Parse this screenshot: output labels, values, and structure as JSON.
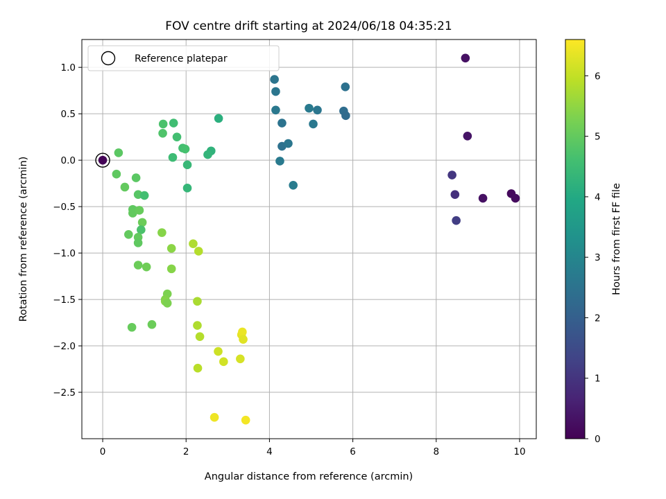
{
  "chart_data": {
    "type": "scatter",
    "title": "FOV centre drift starting at 2024/06/18 04:35:21",
    "xlabel": "Angular distance from reference (arcmin)",
    "ylabel": "Rotation from reference (arcmin)",
    "xlim": [
      -0.5,
      10.4
    ],
    "ylim": [
      -3.0,
      1.3
    ],
    "xticks": [
      0,
      2,
      4,
      6,
      8,
      10
    ],
    "xtick_labels": [
      "0",
      "2",
      "4",
      "6",
      "8",
      "10"
    ],
    "yticks": [
      -2.5,
      -2.0,
      -1.5,
      -1.0,
      -0.5,
      0.0,
      0.5,
      1.0
    ],
    "ytick_labels": [
      "−2.5",
      "−2.0",
      "−1.5",
      "−1.0",
      "−0.5",
      "0.0",
      "0.5",
      "1.0"
    ],
    "grid": true,
    "legend": {
      "label": "Reference platepar",
      "position": "upper-left"
    },
    "reference_point": {
      "x": 0,
      "y": 0
    },
    "colorbar": {
      "label": "Hours from first FF file",
      "range": [
        0,
        6.6
      ],
      "ticks": [
        0,
        1,
        2,
        3,
        4,
        5,
        6
      ],
      "tick_labels": [
        "0",
        "1",
        "2",
        "3",
        "4",
        "5",
        "6"
      ],
      "colormap": "viridis"
    },
    "points": [
      {
        "x": 0.0,
        "y": 0.0,
        "c": 0.05
      },
      {
        "x": 8.7,
        "y": 1.1,
        "c": 0.3
      },
      {
        "x": 8.75,
        "y": 0.26,
        "c": 0.35
      },
      {
        "x": 8.38,
        "y": -0.16,
        "c": 1.05
      },
      {
        "x": 8.45,
        "y": -0.37,
        "c": 0.9
      },
      {
        "x": 8.48,
        "y": -0.65,
        "c": 1.2
      },
      {
        "x": 9.12,
        "y": -0.41,
        "c": 0.3
      },
      {
        "x": 9.8,
        "y": -0.36,
        "c": 0.15
      },
      {
        "x": 9.9,
        "y": -0.41,
        "c": 0.2
      },
      {
        "x": 4.12,
        "y": 0.87,
        "c": 2.55
      },
      {
        "x": 4.15,
        "y": 0.74,
        "c": 2.6
      },
      {
        "x": 4.15,
        "y": 0.54,
        "c": 2.65
      },
      {
        "x": 4.3,
        "y": 0.4,
        "c": 2.5
      },
      {
        "x": 4.3,
        "y": 0.15,
        "c": 2.45
      },
      {
        "x": 4.25,
        "y": -0.01,
        "c": 2.7
      },
      {
        "x": 4.45,
        "y": 0.18,
        "c": 2.6
      },
      {
        "x": 4.57,
        "y": -0.27,
        "c": 2.75
      },
      {
        "x": 4.95,
        "y": 0.56,
        "c": 2.7
      },
      {
        "x": 5.05,
        "y": 0.39,
        "c": 2.65
      },
      {
        "x": 5.15,
        "y": 0.54,
        "c": 2.6
      },
      {
        "x": 5.78,
        "y": 0.53,
        "c": 2.35
      },
      {
        "x": 5.83,
        "y": 0.48,
        "c": 2.3
      },
      {
        "x": 5.82,
        "y": 0.79,
        "c": 2.45
      },
      {
        "x": 2.78,
        "y": 0.45,
        "c": 4.15
      },
      {
        "x": 2.6,
        "y": 0.1,
        "c": 4.25
      },
      {
        "x": 2.52,
        "y": 0.06,
        "c": 4.3
      },
      {
        "x": 2.03,
        "y": -0.05,
        "c": 4.4
      },
      {
        "x": 2.03,
        "y": -0.3,
        "c": 4.35
      },
      {
        "x": 1.68,
        "y": 0.03,
        "c": 4.5
      },
      {
        "x": 1.7,
        "y": 0.4,
        "c": 4.55
      },
      {
        "x": 1.78,
        "y": 0.25,
        "c": 4.6
      },
      {
        "x": 1.92,
        "y": 0.13,
        "c": 4.6
      },
      {
        "x": 1.98,
        "y": 0.12,
        "c": 4.65
      },
      {
        "x": 1.45,
        "y": 0.39,
        "c": 4.7
      },
      {
        "x": 1.44,
        "y": 0.29,
        "c": 4.75
      },
      {
        "x": 0.38,
        "y": 0.08,
        "c": 4.9
      },
      {
        "x": 0.33,
        "y": -0.15,
        "c": 4.95
      },
      {
        "x": 0.53,
        "y": -0.29,
        "c": 5.0
      },
      {
        "x": 0.8,
        "y": -0.19,
        "c": 4.9
      },
      {
        "x": 0.85,
        "y": -0.37,
        "c": 4.85
      },
      {
        "x": 1.0,
        "y": -0.38,
        "c": 4.6
      },
      {
        "x": 0.72,
        "y": -0.53,
        "c": 4.95
      },
      {
        "x": 0.72,
        "y": -0.57,
        "c": 5.0
      },
      {
        "x": 0.88,
        "y": -0.54,
        "c": 5.05
      },
      {
        "x": 0.95,
        "y": -0.67,
        "c": 5.1
      },
      {
        "x": 0.92,
        "y": -0.75,
        "c": 4.7
      },
      {
        "x": 0.62,
        "y": -0.8,
        "c": 5.0
      },
      {
        "x": 0.85,
        "y": -0.83,
        "c": 5.0
      },
      {
        "x": 0.85,
        "y": -0.89,
        "c": 4.95
      },
      {
        "x": 0.85,
        "y": -1.13,
        "c": 5.1
      },
      {
        "x": 1.05,
        "y": -1.15,
        "c": 5.15
      },
      {
        "x": 0.7,
        "y": -1.8,
        "c": 5.05
      },
      {
        "x": 1.18,
        "y": -1.77,
        "c": 5.1
      },
      {
        "x": 1.42,
        "y": -0.78,
        "c": 5.4
      },
      {
        "x": 1.65,
        "y": -0.95,
        "c": 5.45
      },
      {
        "x": 1.65,
        "y": -1.17,
        "c": 5.4
      },
      {
        "x": 1.55,
        "y": -1.44,
        "c": 5.3
      },
      {
        "x": 1.5,
        "y": -1.5,
        "c": 5.35
      },
      {
        "x": 1.5,
        "y": -1.52,
        "c": 5.4
      },
      {
        "x": 1.55,
        "y": -1.54,
        "c": 5.3
      },
      {
        "x": 2.17,
        "y": -0.9,
        "c": 5.8
      },
      {
        "x": 2.3,
        "y": -0.98,
        "c": 5.85
      },
      {
        "x": 2.27,
        "y": -1.52,
        "c": 5.75
      },
      {
        "x": 2.27,
        "y": -1.78,
        "c": 5.8
      },
      {
        "x": 2.33,
        "y": -1.9,
        "c": 5.85
      },
      {
        "x": 2.28,
        "y": -2.24,
        "c": 5.9
      },
      {
        "x": 2.77,
        "y": -2.06,
        "c": 6.1
      },
      {
        "x": 2.9,
        "y": -2.17,
        "c": 6.15
      },
      {
        "x": 3.3,
        "y": -2.14,
        "c": 6.2
      },
      {
        "x": 3.33,
        "y": -1.88,
        "c": 6.35
      },
      {
        "x": 3.35,
        "y": -1.85,
        "c": 6.4
      },
      {
        "x": 3.37,
        "y": -1.93,
        "c": 6.3
      },
      {
        "x": 2.68,
        "y": -2.77,
        "c": 6.45
      },
      {
        "x": 3.43,
        "y": -2.8,
        "c": 6.5
      }
    ]
  }
}
